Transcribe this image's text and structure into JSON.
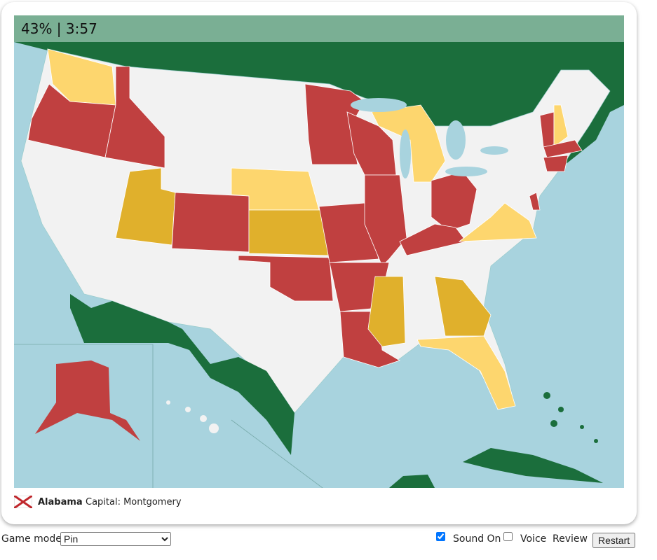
{
  "hud": {
    "score_time": "43% | 3:57"
  },
  "info": {
    "state": "Alabama",
    "capital": "Capital: Montgomery"
  },
  "controls": {
    "game_mode_label": "Game mode:",
    "game_mode": "Pin",
    "sound": "Sound On",
    "voice": "Voice",
    "review": "Review",
    "restart": "Restart"
  }
}
